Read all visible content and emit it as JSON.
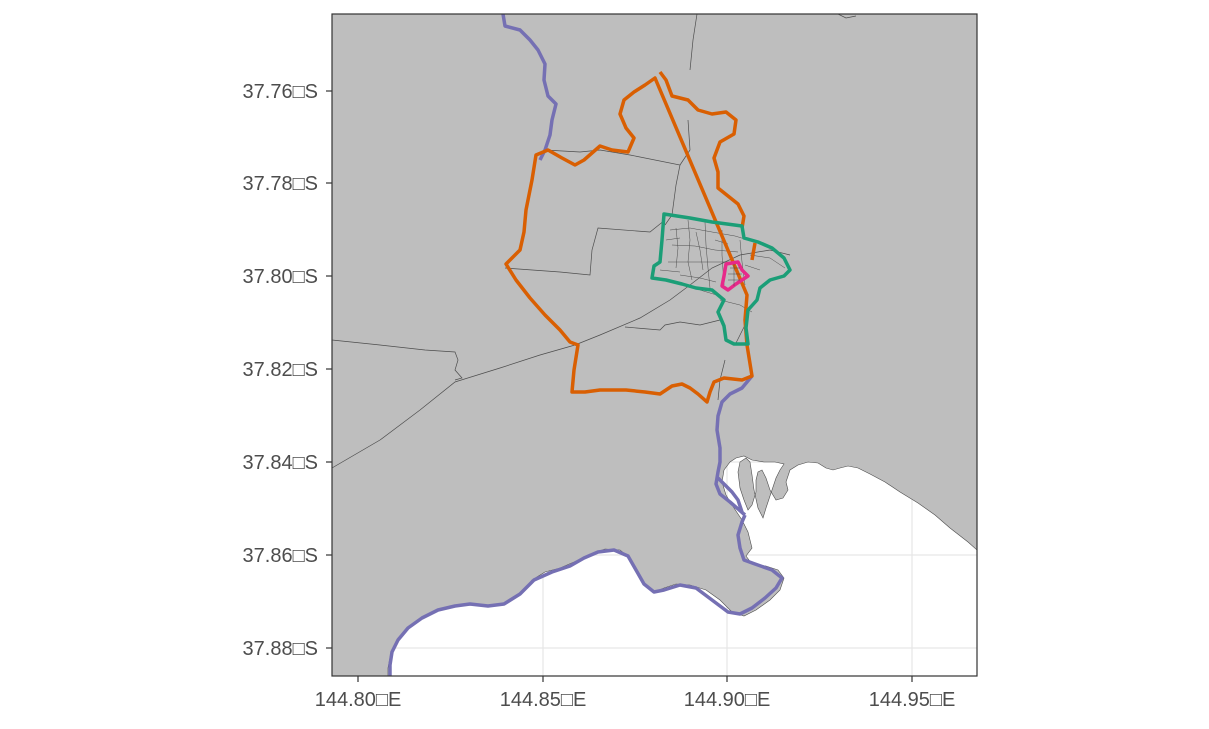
{
  "map": {
    "colors": {
      "land": "#bebebe",
      "water": "#ffffff",
      "grid": "#e6e6e6",
      "panel_border": "#333333",
      "axis_text": "#4d4d4d",
      "boundary_lines": "#4d4d4d"
    },
    "axes": {
      "y_ticks": [
        "37.76□S",
        "37.78□S",
        "37.80□S",
        "37.82□S",
        "37.84□S",
        "37.86□S",
        "37.88□S"
      ],
      "x_ticks": [
        "144.80□E",
        "144.85□E",
        "144.90□E",
        "144.95□E"
      ]
    },
    "layers": [
      {
        "id": "river",
        "color": "#7570b3"
      },
      {
        "id": "outer-boundary",
        "color": "#d95f02"
      },
      {
        "id": "middle-boundary",
        "color": "#1b9e77"
      },
      {
        "id": "inner-boundary",
        "color": "#e7298a"
      }
    ]
  }
}
